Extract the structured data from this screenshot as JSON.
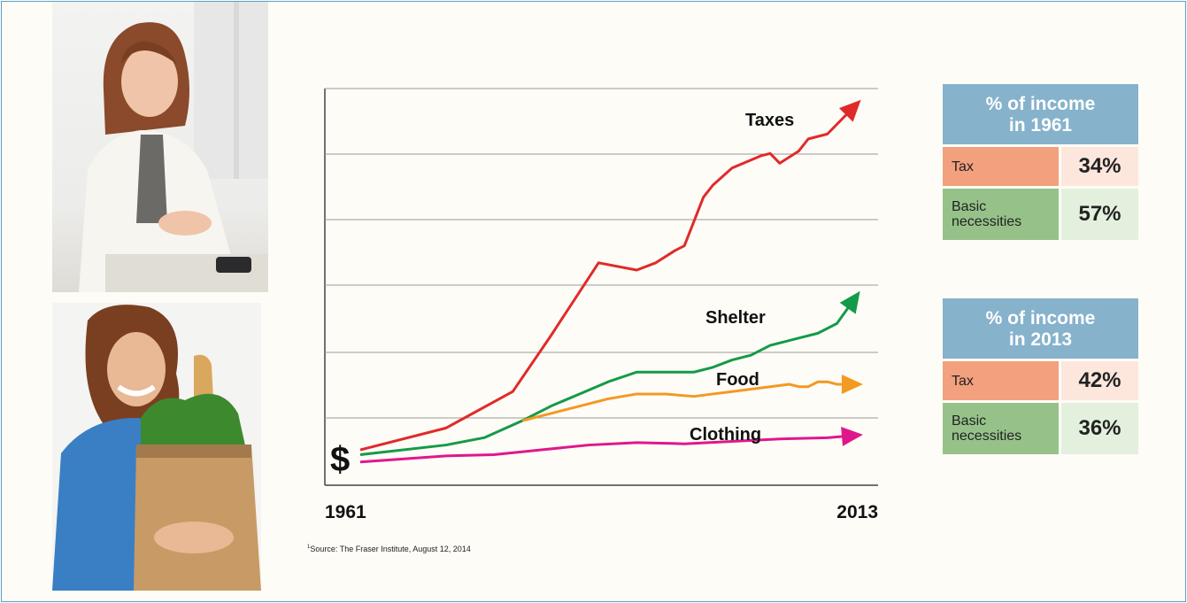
{
  "photos": [
    {
      "name": "woman-calculating-photo"
    },
    {
      "name": "woman-with-groceries-photo"
    }
  ],
  "source": {
    "marker": "1",
    "text": "Source: The Fraser Institute, August 12, 2014"
  },
  "chart_data": {
    "type": "line",
    "title": "",
    "xlabel": "",
    "ylabel": "",
    "y_axis_marker": "$",
    "x_range": [
      1961,
      2013
    ],
    "x_tick_labels": [
      "1961",
      "2013"
    ],
    "grid": "horizontal",
    "series": [
      {
        "name": "Taxes",
        "color": "#e02a2a",
        "x": [
          1961,
          1970,
          1977,
          1981,
          1986,
          1990,
          1992,
          1994,
          1995,
          1997,
          1998,
          2000,
          2003,
          2004,
          2005,
          2007,
          2008,
          2010,
          2013
        ],
        "y": [
          0.8,
          1.7,
          3.2,
          5.5,
          8.5,
          8.2,
          8.5,
          9.0,
          9.2,
          11.2,
          11.7,
          12.4,
          12.9,
          13.0,
          12.6,
          13.1,
          13.6,
          13.8,
          15.0
        ]
      },
      {
        "name": "Shelter",
        "color": "#159a48",
        "x": [
          1961,
          1970,
          1974,
          1978,
          1981,
          1984,
          1987,
          1990,
          1993,
          1996,
          1998,
          2000,
          2002,
          2004,
          2005,
          2006,
          2007,
          2009,
          2011,
          2013
        ],
        "y": [
          0.6,
          1.0,
          1.3,
          2.0,
          2.6,
          3.1,
          3.6,
          4.0,
          4.0,
          4.0,
          4.2,
          4.5,
          4.7,
          5.1,
          5.2,
          5.3,
          5.4,
          5.6,
          6.0,
          7.1
        ]
      },
      {
        "name": "Food",
        "color": "#f29a22",
        "x": [
          1978,
          1981,
          1984,
          1987,
          1990,
          1993,
          1996,
          1998,
          2000,
          2002,
          2004,
          2006,
          2007,
          2008,
          2009,
          2010,
          2011,
          2013
        ],
        "y": [
          2.0,
          2.3,
          2.6,
          2.9,
          3.1,
          3.1,
          3.0,
          3.1,
          3.2,
          3.3,
          3.4,
          3.5,
          3.4,
          3.4,
          3.6,
          3.6,
          3.5,
          3.5
        ]
      },
      {
        "name": "Clothing",
        "color": "#e0178c",
        "x": [
          1961,
          1970,
          1975,
          1980,
          1985,
          1990,
          1995,
          2000,
          2005,
          2010,
          2013
        ],
        "y": [
          0.3,
          0.55,
          0.6,
          0.8,
          1.0,
          1.1,
          1.05,
          1.15,
          1.25,
          1.3,
          1.4
        ]
      }
    ]
  },
  "tables": [
    {
      "title_line1": "% of income",
      "title_line2": "in 1961",
      "tax_label": "Tax",
      "tax_value": "34%",
      "basic_label_line1": "Basic",
      "basic_label_line2": "necessities",
      "basic_value": "57%"
    },
    {
      "title_line1": "% of income",
      "title_line2": "in 2013",
      "tax_label": "Tax",
      "tax_value": "42%",
      "basic_label_line1": "Basic",
      "basic_label_line2": "necessities",
      "basic_value": "36%"
    }
  ]
}
